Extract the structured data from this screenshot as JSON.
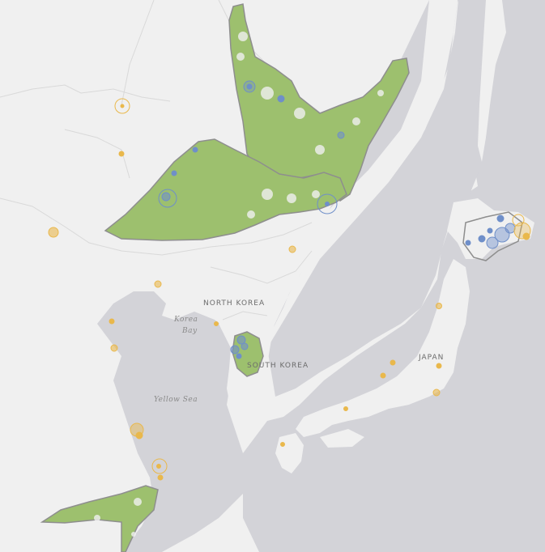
{
  "map": {
    "labels": {
      "north_korea": "NORTH KOREA",
      "south_korea": "SOUTH KOREA",
      "japan": "JAPAN",
      "korea_bay_line1": "Korea",
      "korea_bay_line2": "Bay",
      "yellow_sea": "Yellow Sea"
    },
    "colors": {
      "land": "#f0f0f0",
      "water": "#d3d3d8",
      "range_fill": "#9dc06e",
      "range_outline": "#8e8e8e",
      "blue_marker": "#6f8fc9",
      "yellow_marker": "#e9b84c",
      "borders": "#d9d9d9"
    }
  }
}
